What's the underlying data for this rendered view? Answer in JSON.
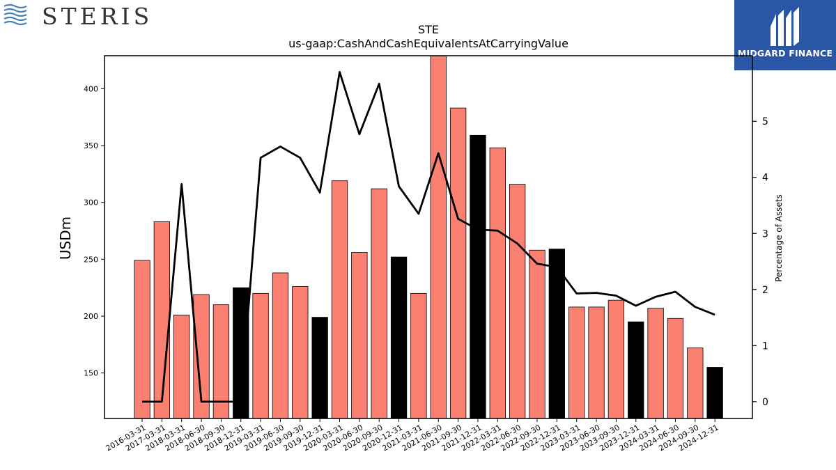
{
  "branding": {
    "left_logo_text": "STERIS",
    "right_logo_text": "MIDGARD FINANCE",
    "right_logo_bg": "#2a56a6"
  },
  "chart_data": {
    "type": "bar",
    "title": "STE",
    "subtitle": "us-gaap:CashAndCashEquivalentsAtCarryingValue",
    "ylabel": "USDm",
    "y2label": "Percentage of Assets",
    "ylim": [
      110,
      429
    ],
    "y2lim": [
      -0.3,
      6.17
    ],
    "yticks": [
      150,
      200,
      250,
      300,
      350,
      400
    ],
    "y2ticks": [
      0,
      1,
      2,
      3,
      4,
      5
    ],
    "categories": [
      "2016-03-31",
      "2017-03-31",
      "2018-03-31",
      "2018-06-30",
      "2018-09-30",
      "2018-12-31",
      "2019-03-31",
      "2019-06-30",
      "2019-09-30",
      "2019-12-31",
      "2020-03-31",
      "2020-06-30",
      "2020-09-30",
      "2020-12-31",
      "2021-03-31",
      "2021-06-30",
      "2021-09-30",
      "2021-12-31",
      "2022-03-31",
      "2022-06-30",
      "2022-09-30",
      "2022-12-31",
      "2023-03-31",
      "2023-06-30",
      "2023-09-30",
      "2023-12-31",
      "2024-03-31",
      "2024-06-30",
      "2024-09-30",
      "2024-12-31"
    ],
    "series": [
      {
        "kind": "bar",
        "values": [
          249,
          283,
          201,
          219,
          210,
          225,
          220,
          238,
          226,
          199,
          319,
          256,
          312,
          252,
          220,
          431,
          383,
          359,
          348,
          316,
          258,
          259,
          208,
          208,
          214,
          195,
          207,
          198,
          172,
          155
        ],
        "colors": [
          "#fa8072",
          "#fa8072",
          "#fa8072",
          "#fa8072",
          "#fa8072",
          "#000000",
          "#fa8072",
          "#fa8072",
          "#fa8072",
          "#000000",
          "#fa8072",
          "#fa8072",
          "#fa8072",
          "#000000",
          "#fa8072",
          "#fa8072",
          "#fa8072",
          "#000000",
          "#fa8072",
          "#fa8072",
          "#fa8072",
          "#000000",
          "#fa8072",
          "#fa8072",
          "#fa8072",
          "#000000",
          "#fa8072",
          "#fa8072",
          "#fa8072",
          "#000000"
        ]
      },
      {
        "kind": "line",
        "axis": "right",
        "color": "#000000",
        "values": [
          0,
          0,
          3.88,
          0,
          0,
          0,
          4.35,
          4.55,
          4.35,
          3.73,
          5.88,
          4.77,
          5.67,
          3.84,
          3.35,
          4.43,
          3.26,
          3.07,
          3.05,
          2.82,
          2.46,
          2.4,
          1.93,
          1.94,
          1.89,
          1.71,
          1.87,
          1.96,
          1.69,
          1.55
        ]
      }
    ],
    "grid": false,
    "legend": "none"
  }
}
